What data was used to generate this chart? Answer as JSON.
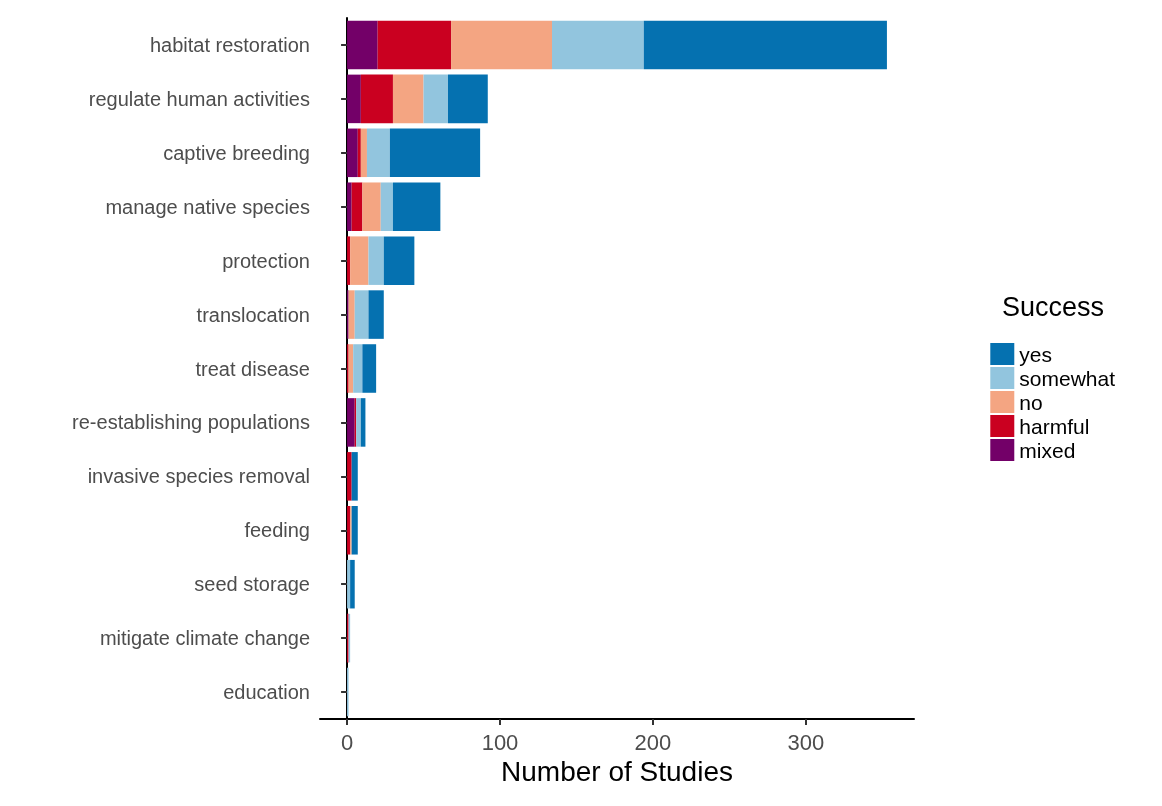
{
  "chart_data": {
    "type": "bar",
    "orientation": "horizontal",
    "stacked": true,
    "xlabel": "Number of Studies",
    "legend_title": "Success",
    "legend": "right",
    "grid": false,
    "categories": [
      "habitat restoration",
      "regulate human activities",
      "captive breeding",
      "manage native species",
      "protection",
      "translocation",
      "treat disease",
      "re-establishing populations",
      "invasive species removal",
      "feeding",
      "seed storage",
      "mitigate climate change",
      "education"
    ],
    "xlim": [
      -17.7,
      370.7
    ],
    "xticks": [
      0,
      100,
      200,
      300
    ],
    "series": [
      {
        "name": "mixed",
        "color": "#730068",
        "values": [
          20,
          9,
          7,
          3,
          0,
          1,
          0,
          5,
          0,
          0,
          0,
          0,
          0
        ]
      },
      {
        "name": "harmful",
        "color": "#ca0020",
        "values": [
          48,
          21,
          2,
          7,
          2,
          0,
          1,
          1,
          3,
          2,
          0,
          1,
          0
        ]
      },
      {
        "name": "no",
        "color": "#f4a582",
        "values": [
          66,
          20,
          4,
          12,
          12,
          4,
          3,
          0,
          0,
          1,
          0,
          0,
          0
        ]
      },
      {
        "name": "somewhat",
        "color": "#92c5de",
        "values": [
          60,
          16,
          15,
          8,
          10,
          9,
          6,
          3,
          0,
          0,
          2,
          1,
          1
        ]
      },
      {
        "name": "yes",
        "color": "#0571b0",
        "values": [
          159,
          26,
          59,
          31,
          20,
          10,
          9,
          3,
          4,
          4,
          3,
          0,
          0
        ]
      }
    ]
  }
}
